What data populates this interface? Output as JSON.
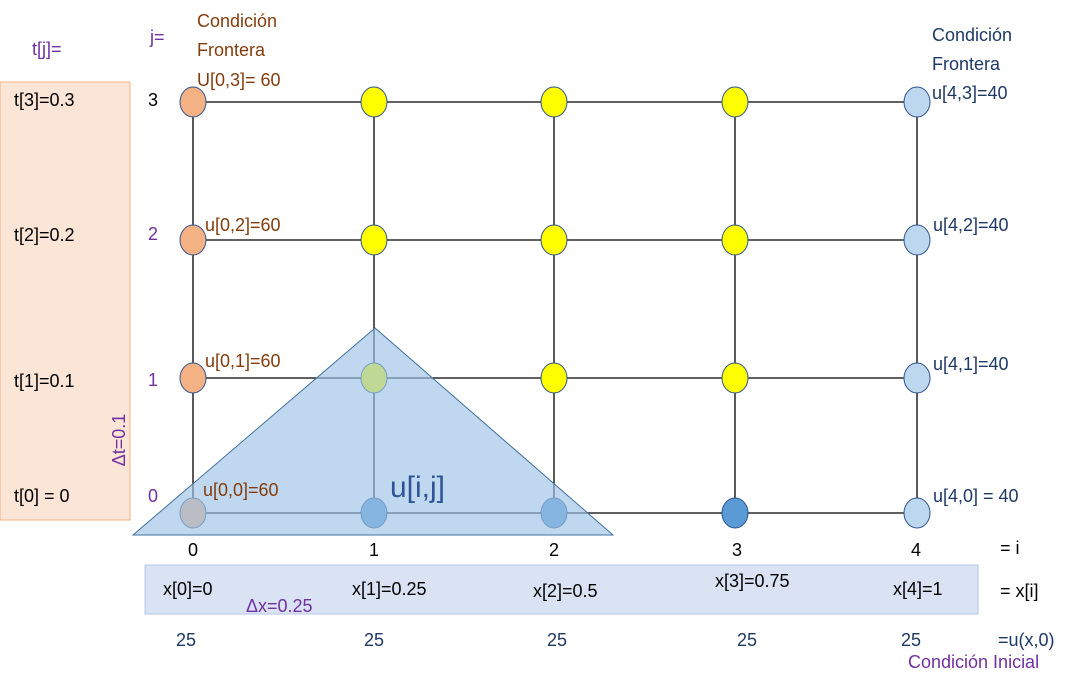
{
  "time_header": "t[j]=",
  "time_labels": [
    "t[3]=0.3",
    "t[2]=0.2",
    "t[1]=0.1",
    "t[0] = 0"
  ],
  "j_header": "j=",
  "j_labels": [
    "3",
    "2",
    "1",
    "0"
  ],
  "left_boundary": [
    "Condición",
    "Frontera",
    "U[0,3]= 60"
  ],
  "right_boundary": [
    "Condición",
    "Frontera",
    "u[4,3]=40"
  ],
  "left_nodes": [
    "u[0,2]=60",
    "u[0,1]=60",
    "u[0,0]=60"
  ],
  "right_nodes": [
    "u[4,2]=40",
    "u[4,1]=40",
    "u[4,0] = 40"
  ],
  "dt": "Δt=0.1",
  "center_label": "u[i,j]",
  "i_labels": [
    "0",
    "1",
    "2",
    "3",
    "4"
  ],
  "i_suffix": "= i",
  "x_labels": [
    "x[0]=0",
    "x[1]=0.25",
    "x[2]=0.5",
    "x[3]=0.75",
    "x[4]=1"
  ],
  "x_suffix": "= x[i]",
  "dx": "Δx=0.25",
  "initial_values": [
    "25",
    "25",
    "25",
    "25",
    "25"
  ],
  "initial_suffix": "=u(x,0)",
  "initial_caption": "Condición Inicial"
}
